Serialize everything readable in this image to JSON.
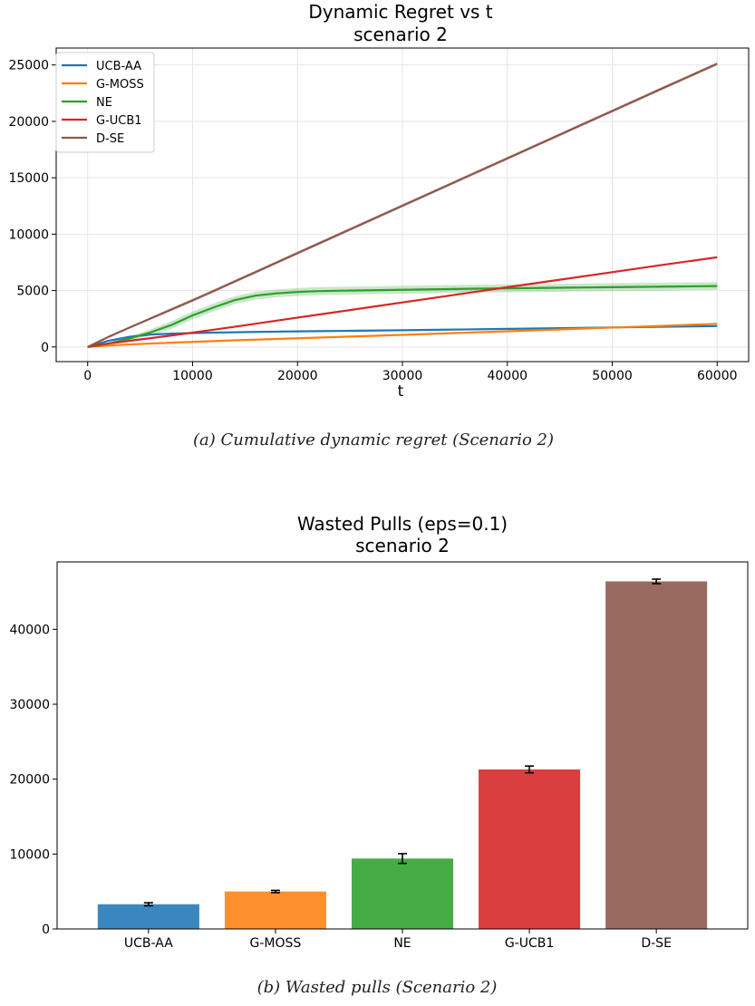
{
  "chart_data": [
    {
      "type": "line",
      "title": "Dynamic Regret vs t",
      "subtitle": "scenario 2",
      "xlabel": "t",
      "ylabel": "",
      "xlim": [
        -3000,
        63000
      ],
      "ylim": [
        -1300,
        26500
      ],
      "x_ticks": [
        0,
        10000,
        20000,
        30000,
        40000,
        50000,
        60000
      ],
      "y_ticks": [
        0,
        5000,
        10000,
        15000,
        20000,
        25000
      ],
      "grid": true,
      "legend_position": "top-left",
      "x": [
        0,
        2000,
        4000,
        6000,
        8000,
        10000,
        12000,
        14000,
        16000,
        18000,
        20000,
        22000,
        25000,
        30000,
        35000,
        40000,
        45000,
        50000,
        55000,
        60000
      ],
      "series": [
        {
          "name": "UCB-AA",
          "color": "#1f77b4",
          "values": [
            0,
            550,
            900,
            1100,
            1180,
            1230,
            1270,
            1300,
            1330,
            1355,
            1380,
            1400,
            1430,
            1480,
            1540,
            1600,
            1660,
            1730,
            1790,
            1850
          ]
        },
        {
          "name": "G-MOSS",
          "color": "#ff7f0e",
          "values": [
            0,
            120,
            220,
            300,
            380,
            450,
            520,
            590,
            650,
            710,
            770,
            830,
            920,
            1070,
            1230,
            1390,
            1550,
            1720,
            1880,
            2050
          ]
        },
        {
          "name": "NE",
          "color": "#2ca02c",
          "band": 350,
          "values": [
            0,
            300,
            750,
            1300,
            1950,
            2800,
            3500,
            4150,
            4550,
            4750,
            4870,
            4950,
            5000,
            5070,
            5140,
            5200,
            5250,
            5300,
            5350,
            5400
          ]
        },
        {
          "name": "G-UCB1",
          "color": "#d62728",
          "values": [
            0,
            300,
            550,
            780,
            1020,
            1270,
            1530,
            1790,
            2060,
            2330,
            2600,
            2870,
            3270,
            3950,
            4620,
            5300,
            5960,
            6630,
            7300,
            7950
          ]
        },
        {
          "name": "D-SE",
          "color": "#8c564b",
          "band": 150,
          "values": [
            0,
            900,
            1720,
            2530,
            3330,
            4130,
            4960,
            5800,
            6630,
            7480,
            8320,
            9160,
            10420,
            12520,
            14620,
            16720,
            18820,
            20920,
            23020,
            25100
          ]
        }
      ]
    },
    {
      "type": "bar",
      "title": "Wasted Pulls (eps=0.1)",
      "subtitle": "scenario 2",
      "xlabel": "",
      "ylabel": "",
      "ylim": [
        0,
        49000
      ],
      "y_ticks": [
        0,
        10000,
        20000,
        30000,
        40000
      ],
      "grid": false,
      "categories": [
        "UCB-AA",
        "G-MOSS",
        "NE",
        "G-UCB1",
        "D-SE"
      ],
      "values": [
        3300,
        5000,
        9400,
        21300,
        46400
      ],
      "errors": [
        200,
        150,
        650,
        450,
        300
      ],
      "colors": [
        "#3a87c0",
        "#ff902e",
        "#45ab45",
        "#db3e3f",
        "#996b60"
      ]
    }
  ],
  "captions": {
    "a": "(a) Cumulative dynamic regret (Scenario 2)",
    "b": "(b) Wasted pulls (Scenario 2)"
  }
}
